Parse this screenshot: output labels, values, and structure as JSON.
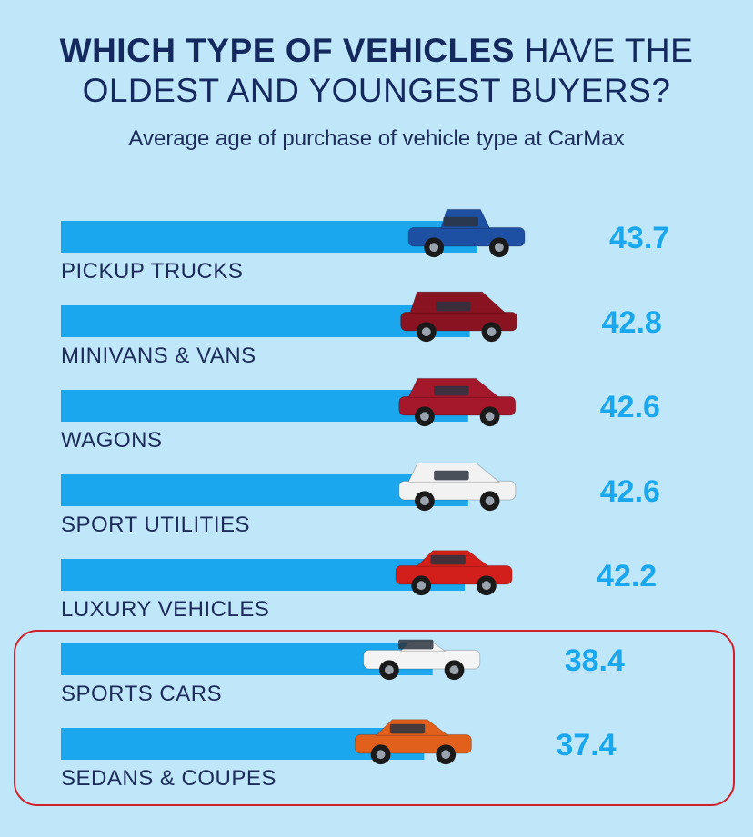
{
  "title_bold": "WHICH TYPE OF VEHICLES",
  "title_rest": " HAVE THE OLDEST AND YOUNGEST BUYERS?",
  "subtitle": "Average age of purchase of vehicle type at CarMax",
  "colors": {
    "background": "#bfe6f9",
    "bar": "#1aa7ee",
    "value_text": "#1aa7ee",
    "label_text": "#1c2c5a",
    "highlight": "#d0202a"
  },
  "chart_data": {
    "type": "bar",
    "orientation": "horizontal",
    "title": "WHICH TYPE OF VEHICLES HAVE THE OLDEST AND YOUNGEST BUYERS?",
    "subtitle": "Average age of purchase of vehicle type at CarMax",
    "categories": [
      "PICKUP TRUCKS",
      "MINIVANS & VANS",
      "WAGONS",
      "SPORT UTILITIES",
      "LUXURY VEHICLES",
      "SPORTS CARS",
      "SEDANS & COUPES"
    ],
    "values": [
      43.7,
      42.8,
      42.6,
      42.6,
      42.2,
      38.4,
      37.4
    ],
    "value_labels": [
      "43.7",
      "42.8",
      "42.6",
      "42.6",
      "42.2",
      "38.4",
      "37.4"
    ],
    "car_icons": [
      "pickup-truck-icon",
      "minivan-icon",
      "wagon-icon",
      "suv-icon",
      "luxury-sedan-icon",
      "sports-car-icon",
      "sedan-icon"
    ],
    "car_colors": [
      "#1d4fa3",
      "#8a1322",
      "#a5172a",
      "#f2f2f2",
      "#d31f1b",
      "#f4f4f4",
      "#e0601c"
    ],
    "highlighted_categories": [
      "SPORTS CARS",
      "SEDANS & COUPES"
    ],
    "grid": false,
    "legend": "none"
  }
}
